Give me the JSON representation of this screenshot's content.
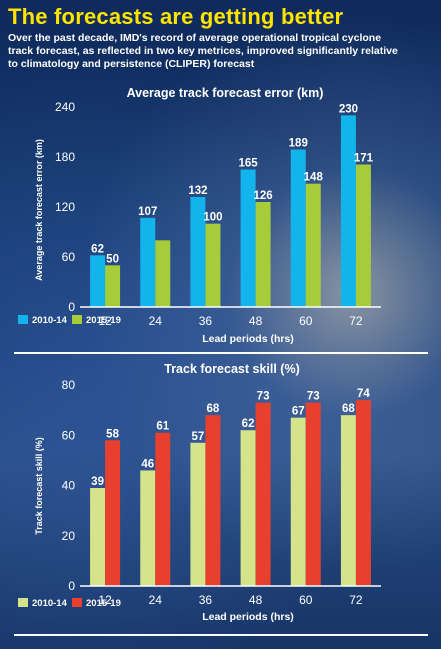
{
  "header": {
    "title": "The forecasts are getting better",
    "subtitle": "Over the past decade, IMD's record of average operational tropical cyclone track forecast, as reflected in two key metrices, improved significantly relative to climatology and persistence (CLIPER) forecast"
  },
  "chart_data": [
    {
      "type": "bar",
      "title": "Average track forecast error (km)",
      "xlabel": "Lead periods (hrs)",
      "ylabel": "Average track forecast error (km)",
      "categories": [
        "12",
        "24",
        "36",
        "48",
        "60",
        "72"
      ],
      "ylim": [
        0,
        240
      ],
      "yticks": [
        0,
        60,
        120,
        180,
        240
      ],
      "grid": false,
      "legend": "bottom-left",
      "series": [
        {
          "name": "2010-14",
          "color": "#13b4ec",
          "values": [
            62,
            107,
            132,
            165,
            189,
            230
          ]
        },
        {
          "name": "2015-19",
          "color": "#a7cc3a",
          "values": [
            50,
            80,
            100,
            126,
            148,
            171
          ]
        }
      ],
      "data_labels": [
        [
          "62",
          "107",
          "132",
          "165",
          "189",
          "230"
        ],
        [
          "50",
          "",
          "100",
          "126",
          "148",
          "171"
        ]
      ]
    },
    {
      "type": "bar",
      "title": "Track forecast skill (%)",
      "xlabel": "Lead periods (hrs)",
      "ylabel": "Track forecast skill (%)",
      "categories": [
        "12",
        "24",
        "36",
        "48",
        "60",
        "72"
      ],
      "ylim": [
        0,
        80
      ],
      "yticks": [
        0,
        20,
        40,
        60,
        80
      ],
      "grid": false,
      "legend": "bottom-left",
      "series": [
        {
          "name": "2010-14",
          "color": "#d5e48a",
          "values": [
            39,
            46,
            57,
            62,
            67,
            68
          ]
        },
        {
          "name": "2015-19",
          "color": "#e8402e",
          "values": [
            58,
            61,
            68,
            73,
            73,
            74
          ]
        }
      ],
      "data_labels": [
        [
          "39",
          "46",
          "57",
          "62",
          "67",
          "68"
        ],
        [
          "58",
          "61",
          "68",
          "73",
          "73",
          "74"
        ]
      ]
    }
  ]
}
